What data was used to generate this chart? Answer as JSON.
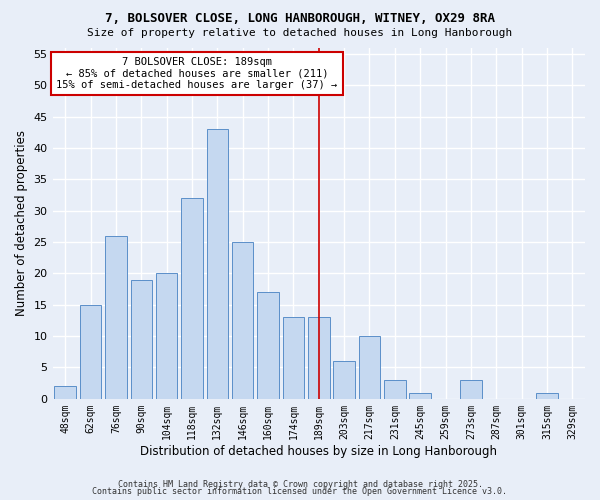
{
  "title1": "7, BOLSOVER CLOSE, LONG HANBOROUGH, WITNEY, OX29 8RA",
  "title2": "Size of property relative to detached houses in Long Hanborough",
  "xlabel": "Distribution of detached houses by size in Long Hanborough",
  "ylabel": "Number of detached properties",
  "categories": [
    "48sqm",
    "62sqm",
    "76sqm",
    "90sqm",
    "104sqm",
    "118sqm",
    "132sqm",
    "146sqm",
    "160sqm",
    "174sqm",
    "189sqm",
    "203sqm",
    "217sqm",
    "231sqm",
    "245sqm",
    "259sqm",
    "273sqm",
    "287sqm",
    "301sqm",
    "315sqm",
    "329sqm"
  ],
  "values": [
    2,
    15,
    26,
    19,
    20,
    32,
    43,
    25,
    17,
    13,
    13,
    6,
    10,
    3,
    1,
    0,
    3,
    0,
    0,
    1,
    0
  ],
  "bar_color": "#c5d8f0",
  "bar_edge_color": "#5b8fc9",
  "vline_x_index": 10,
  "vline_color": "#cc0000",
  "annotation_text": "7 BOLSOVER CLOSE: 189sqm\n← 85% of detached houses are smaller (211)\n15% of semi-detached houses are larger (37) →",
  "annotation_box_color": "#ffffff",
  "annotation_border_color": "#cc0000",
  "ylim": [
    0,
    56
  ],
  "yticks": [
    0,
    5,
    10,
    15,
    20,
    25,
    30,
    35,
    40,
    45,
    50,
    55
  ],
  "bg_color": "#e8eef8",
  "grid_color": "#ffffff",
  "footer1": "Contains HM Land Registry data © Crown copyright and database right 2025.",
  "footer2": "Contains public sector information licensed under the Open Government Licence v3.0."
}
